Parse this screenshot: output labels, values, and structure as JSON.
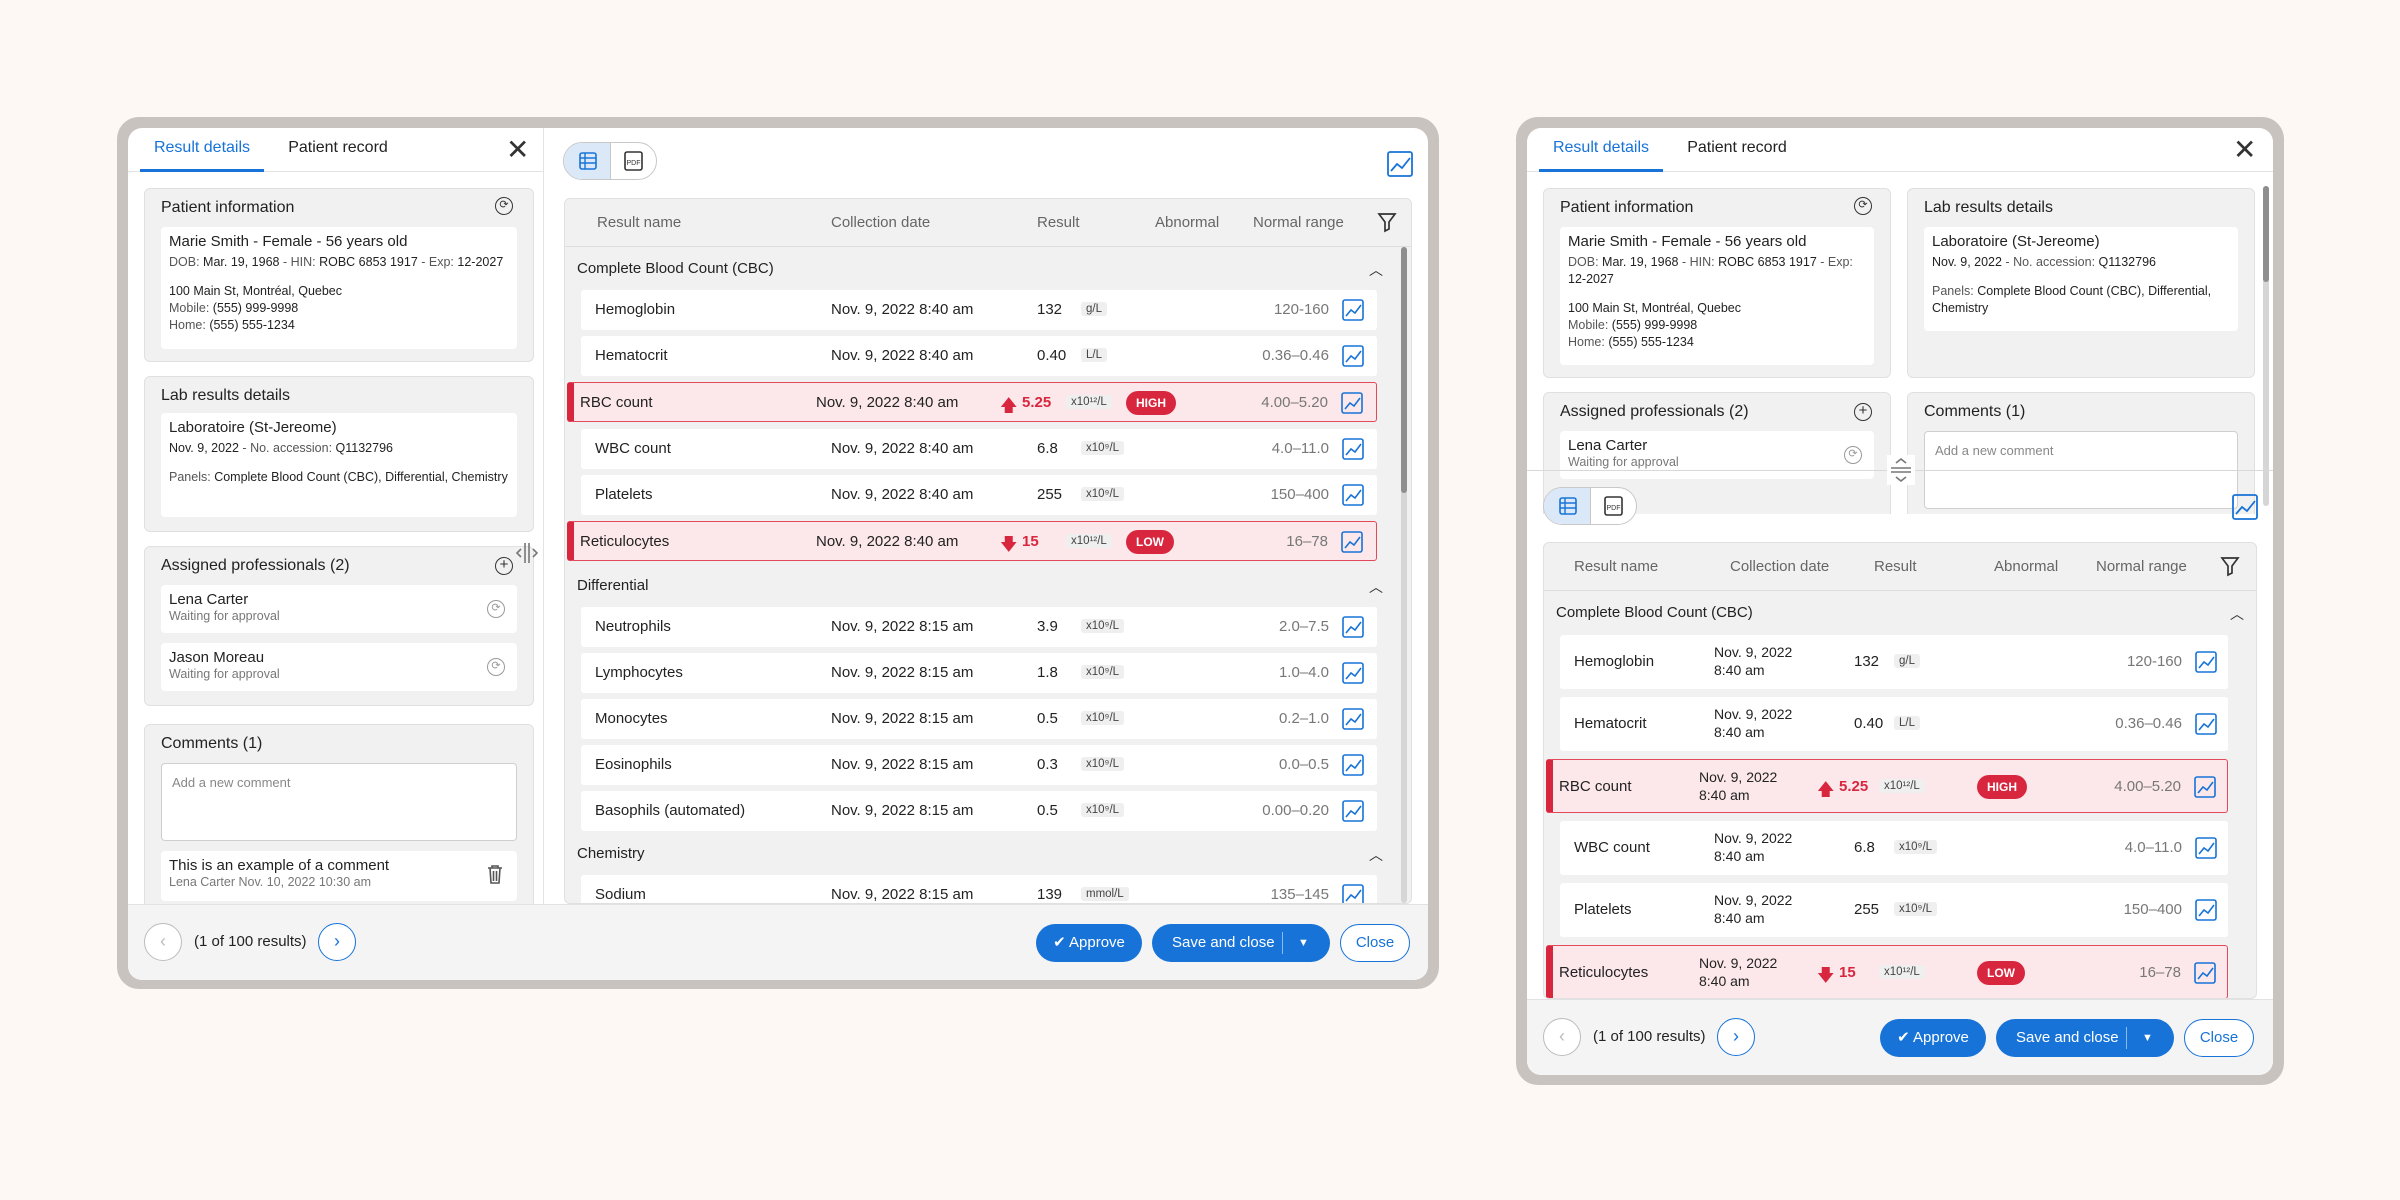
{
  "tabs": {
    "result_details": "Result details",
    "patient_record": "Patient record"
  },
  "patient": {
    "title": "Patient information",
    "name": "Marie Smith - Female - 56 years old",
    "dob_label": "DOB:",
    "dob": "Mar. 19, 1968",
    "hin_label": "HIN:",
    "hin": "ROBC 6853 1917",
    "exp_label": "Exp:",
    "exp": "12-2027",
    "address": "100 Main St, Montréal, Quebec",
    "mobile_label": "Mobile:",
    "mobile": "(555) 999-9998",
    "home_label": "Home:",
    "home": "(555) 555-1234"
  },
  "lab": {
    "title": "Lab results details",
    "lab_name": "Laboratoire (St-Jereome)",
    "date": "Nov. 9, 2022",
    "accession_label": "No. accession:",
    "accession": "Q1132796",
    "panels_label": "Panels:",
    "panels": "Complete Blood Count (CBC), Differential, Chemistry"
  },
  "professionals": {
    "title": "Assigned professionals (2)",
    "items": [
      {
        "name": "Lena Carter",
        "status": "Waiting for approval"
      },
      {
        "name": "Jason Moreau",
        "status": "Waiting for approval"
      }
    ]
  },
  "comments": {
    "title": "Comments (1)",
    "placeholder": "Add a new comment",
    "items": [
      {
        "text": "This is an example of a comment",
        "meta": "Lena Carter Nov. 10, 2022 10:30 am"
      }
    ]
  },
  "table": {
    "headers": {
      "name": "Result name",
      "date": "Collection date",
      "result": "Result",
      "abnormal": "Abnormal",
      "range": "Normal range"
    },
    "sections": [
      "Complete Blood Count (CBC)",
      "Differential",
      "Chemistry"
    ],
    "rows": [
      {
        "name": "Hemoglobin",
        "date": "Nov. 9,  2022 8:40 am",
        "d1": "Nov. 9, 2022",
        "d2": "8:40 am",
        "value": "132",
        "unit": "g/L",
        "range": "120-160"
      },
      {
        "name": "Hematocrit",
        "date": "Nov. 9,  2022 8:40 am",
        "d1": "Nov. 9, 2022",
        "d2": "8:40 am",
        "value": "0.40",
        "unit": "L/L",
        "range": "0.36–0.46"
      },
      {
        "name": "RBC count",
        "date": "Nov. 9,  2022 8:40 am",
        "d1": "Nov. 9, 2022",
        "d2": "8:40 am",
        "value": "5.25",
        "unit": "x10¹²/L",
        "flag": "HIGH",
        "range": "4.00–5.20"
      },
      {
        "name": "WBC count",
        "date": "Nov. 9,  2022 8:40 am",
        "d1": "Nov. 9, 2022",
        "d2": "8:40 am",
        "value": "6.8",
        "unit": "x10⁹/L",
        "range": "4.0–11.0"
      },
      {
        "name": "Platelets",
        "date": "Nov. 9,  2022 8:40 am",
        "d1": "Nov. 9, 2022",
        "d2": "8:40 am",
        "value": "255",
        "unit": "x10⁹/L",
        "range": "150–400"
      },
      {
        "name": "Reticulocytes",
        "date": "Nov. 9,  2022 8:40 am",
        "d1": "Nov. 9, 2022",
        "d2": "8:40 am",
        "value": "15",
        "unit": "x10¹²/L",
        "flag": "LOW",
        "range": "16–78"
      },
      {
        "name": "Neutrophils",
        "date": "Nov. 9,  2022 8:15 am",
        "value": "3.9",
        "unit": "x10⁹/L",
        "range": "2.0–7.5"
      },
      {
        "name": "Lymphocytes",
        "date": "Nov. 9,  2022 8:15 am",
        "value": "1.8",
        "unit": "x10⁹/L",
        "range": "1.0–4.0"
      },
      {
        "name": "Monocytes",
        "date": "Nov. 9,  2022 8:15 am",
        "value": "0.5",
        "unit": "x10⁹/L",
        "range": "0.2–1.0"
      },
      {
        "name": "Eosinophils",
        "date": "Nov. 9,  2022 8:15 am",
        "value": "0.3",
        "unit": "x10⁹/L",
        "range": "0.0–0.5"
      },
      {
        "name": "Basophils (automated)",
        "date": "Nov. 9,  2022 8:15 am",
        "value": "0.5",
        "unit": "x10⁹/L",
        "range": "0.00–0.20"
      },
      {
        "name": "Sodium",
        "date": "Nov. 9,  2022 8:15 am",
        "value": "139",
        "unit": "mmol/L",
        "range": "135–145"
      }
    ]
  },
  "footer": {
    "pagination": "(1 of 100 results)",
    "approve": "Approve",
    "save_close": "Save and close",
    "close": "Close"
  },
  "icons": {
    "pdf": "PDF",
    "accent": "#1773d8",
    "alert": "#d8263f"
  }
}
